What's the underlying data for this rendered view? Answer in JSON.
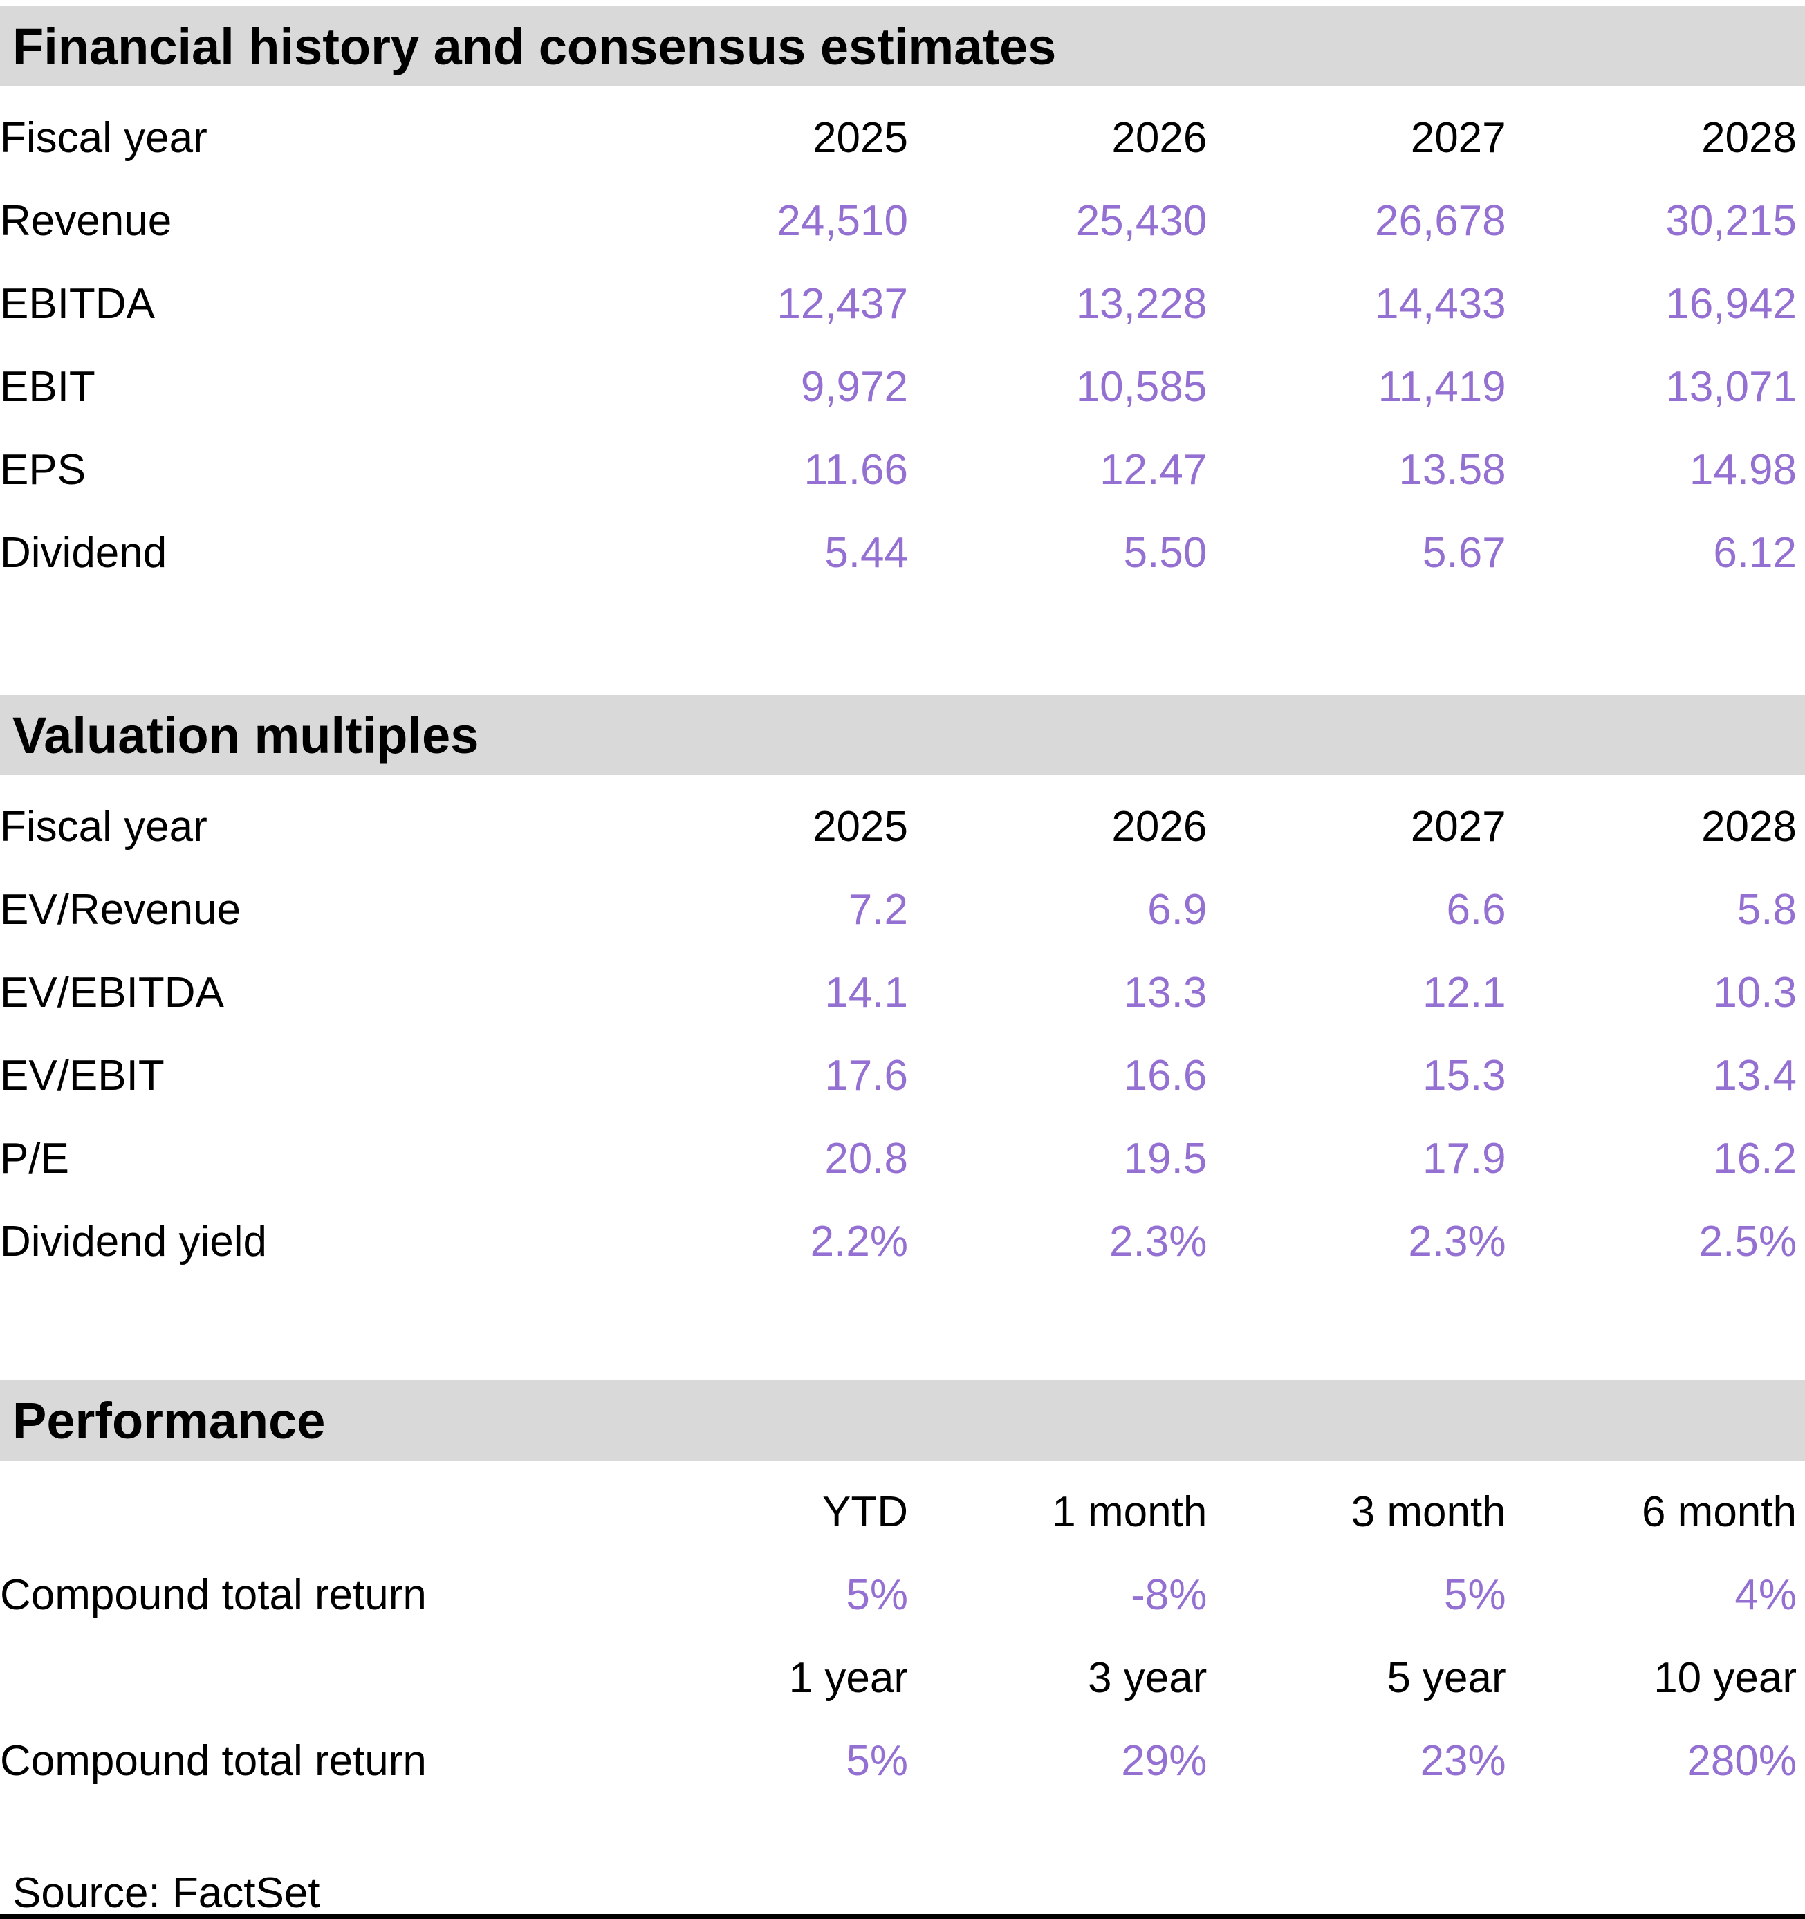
{
  "colors": {
    "accent_value_text": "#9470d2",
    "section_header_bg": "#d9d9d9",
    "text": "#000000"
  },
  "sections": {
    "financial": {
      "title": "Financial history and consensus estimates",
      "col_header_label": "Fiscal year",
      "col_headers": [
        "2025",
        "2026",
        "2027",
        "2028"
      ],
      "rows": [
        {
          "label": "Revenue",
          "values": [
            "24,510",
            "25,430",
            "26,678",
            "30,215"
          ]
        },
        {
          "label": "EBITDA",
          "values": [
            "12,437",
            "13,228",
            "14,433",
            "16,942"
          ]
        },
        {
          "label": "EBIT",
          "values": [
            "9,972",
            "10,585",
            "11,419",
            "13,071"
          ]
        },
        {
          "label": "EPS",
          "values": [
            "11.66",
            "12.47",
            "13.58",
            "14.98"
          ]
        },
        {
          "label": "Dividend",
          "values": [
            "5.44",
            "5.50",
            "5.67",
            "6.12"
          ]
        }
      ]
    },
    "valuation": {
      "title": "Valuation multiples",
      "col_header_label": "Fiscal year",
      "col_headers": [
        "2025",
        "2026",
        "2027",
        "2028"
      ],
      "rows": [
        {
          "label": "EV/Revenue",
          "values": [
            "7.2",
            "6.9",
            "6.6",
            "5.8"
          ]
        },
        {
          "label": "EV/EBITDA",
          "values": [
            "14.1",
            "13.3",
            "12.1",
            "10.3"
          ]
        },
        {
          "label": "EV/EBIT",
          "values": [
            "17.6",
            "16.6",
            "15.3",
            "13.4"
          ]
        },
        {
          "label": "P/E",
          "values": [
            "20.8",
            "19.5",
            "17.9",
            "16.2"
          ]
        },
        {
          "label": "Dividend yield",
          "values": [
            "2.2%",
            "2.3%",
            "2.3%",
            "2.5%"
          ]
        }
      ]
    },
    "performance": {
      "title": "Performance",
      "groups": [
        {
          "col_headers": [
            "YTD",
            "1 month",
            "3 month",
            "6 month"
          ],
          "row": {
            "label": "Compound total return",
            "values": [
              "5%",
              "-8%",
              "5%",
              "4%"
            ]
          }
        },
        {
          "col_headers": [
            "1 year",
            "3 year",
            "5 year",
            "10 year"
          ],
          "row": {
            "label": "Compound total return",
            "values": [
              "5%",
              "29%",
              "23%",
              "280%"
            ]
          }
        }
      ]
    }
  },
  "footer": {
    "source": "Source: FactSet"
  }
}
